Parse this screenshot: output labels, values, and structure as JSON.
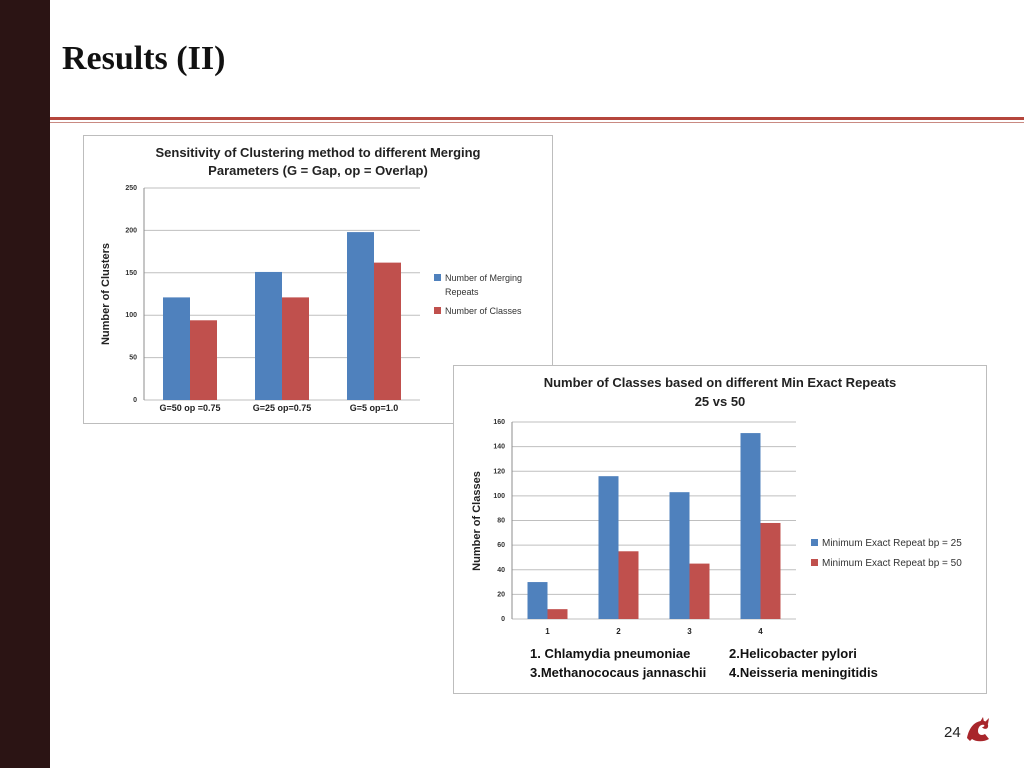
{
  "slide": {
    "title": "Results (II)",
    "page_number": "24"
  },
  "chart_data": [
    {
      "type": "bar",
      "title_lines": [
        "Sensitivity of Clustering method to different Merging",
        "Parameters (G = Gap, op = Overlap)"
      ],
      "ylabel": "Number of Clusters",
      "xlabel": "",
      "categories": [
        "G=50 op =0.75",
        "G=25 op=0.75",
        "G=5  op=1.0"
      ],
      "series": [
        {
          "name": "Number of Merging Repeats",
          "legend_lines": [
            "Number of Merging",
            "Repeats"
          ],
          "values": [
            121,
            151,
            198
          ],
          "color": "#4f81bd"
        },
        {
          "name": "Number of Classes",
          "legend_lines": [
            "Number of Classes"
          ],
          "values": [
            94,
            121,
            162
          ],
          "color": "#c0504d"
        }
      ],
      "ylim": [
        0,
        250
      ],
      "yticks": [
        0,
        50,
        100,
        150,
        200,
        250
      ],
      "grid": true,
      "legend_position": "right"
    },
    {
      "type": "bar",
      "title_lines": [
        "Number of Classes based on different Min Exact Repeats",
        "25 vs 50"
      ],
      "ylabel": "Number of Classes",
      "xlabel": "",
      "categories": [
        "1",
        "2",
        "3",
        "4"
      ],
      "series": [
        {
          "name": "Minimum Exact Repeat bp = 25",
          "legend_lines": [
            "Minimum Exact Repeat bp = 25"
          ],
          "values": [
            30,
            116,
            103,
            151
          ],
          "color": "#4f81bd"
        },
        {
          "name": "Minimum Exact Repeat bp = 50",
          "legend_lines": [
            "Minimum Exact Repeat bp = 50"
          ],
          "values": [
            8,
            55,
            45,
            78
          ],
          "color": "#c0504d"
        }
      ],
      "ylim": [
        0,
        160
      ],
      "yticks": [
        0,
        20,
        40,
        60,
        80,
        100,
        120,
        140,
        160
      ],
      "grid": true,
      "legend_position": "right",
      "footnote_lines": [
        [
          "1. Chlamydia pneumoniae",
          "2.Helicobacter pylori"
        ],
        [
          "3.Methanococaus jannaschii",
          "4.Neisseria meningitidis"
        ]
      ]
    }
  ]
}
